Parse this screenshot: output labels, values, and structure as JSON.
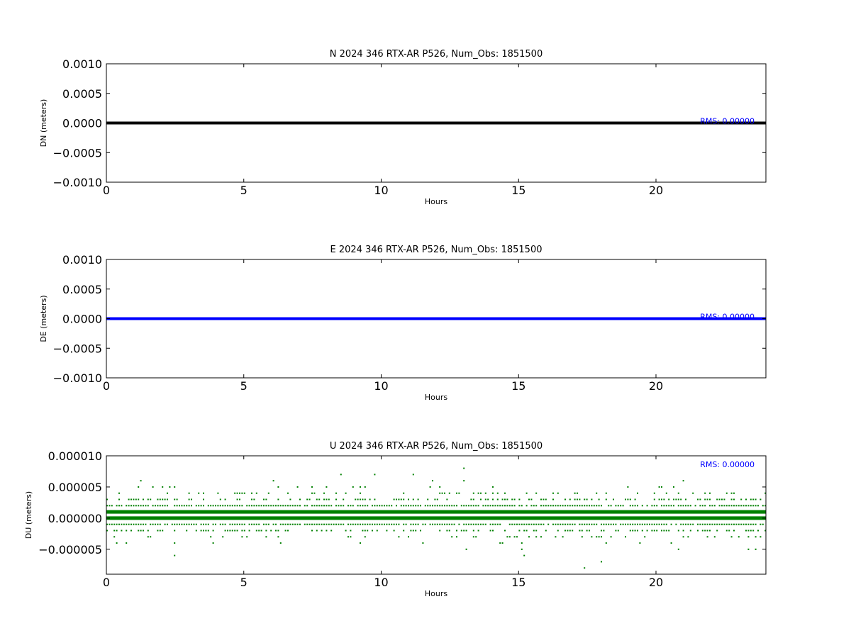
{
  "figure": {
    "background": "#ffffff"
  },
  "chart_data": [
    {
      "type": "scatter",
      "title": "N 2024 346 RTX-AR  P526, Num_Obs: 1851500",
      "xlabel": "Hours",
      "ylabel": "DN (meters)",
      "xlim": [
        0,
        24
      ],
      "ylim": [
        -0.001,
        0.001
      ],
      "xticks": [
        0,
        5,
        10,
        15,
        20
      ],
      "xtick_labels": [
        "0",
        "5",
        "10",
        "15",
        "20"
      ],
      "yticks": [
        0.001,
        0.0005,
        0.0,
        -0.0005,
        -0.001
      ],
      "ytick_labels": [
        "0.0010",
        "0.0005",
        "0.0000",
        "−0.0005",
        "−0.0010"
      ],
      "color": "#000000",
      "rms_label": "RMS:  0.00000",
      "rms_color": "#0000ff",
      "rms_position": "top-right",
      "series": [
        {
          "x_range": [
            0,
            24
          ],
          "y": 0.0
        }
      ]
    },
    {
      "type": "scatter",
      "title": "E 2024 346 RTX-AR  P526, Num_Obs: 1851500",
      "xlabel": "Hours",
      "ylabel": "DE (meters)",
      "xlim": [
        0,
        24
      ],
      "ylim": [
        -0.001,
        0.001
      ],
      "xticks": [
        0,
        5,
        10,
        15,
        20
      ],
      "xtick_labels": [
        "0",
        "5",
        "10",
        "15",
        "20"
      ],
      "yticks": [
        0.001,
        0.0005,
        0.0,
        -0.0005,
        -0.001
      ],
      "ytick_labels": [
        "0.0010",
        "0.0005",
        "0.0000",
        "−0.0005",
        "−0.0010"
      ],
      "color": "#0000ff",
      "rms_label": "RMS:  0.00000",
      "rms_color": "#0000ff",
      "rms_position": "top-right",
      "series": [
        {
          "x_range": [
            0,
            24
          ],
          "y": 0.0
        }
      ]
    },
    {
      "type": "scatter",
      "title": "U 2024 346 RTX-AR  P526, Num_Obs: 1851500",
      "xlabel": "Hours",
      "ylabel": "DU (meters)",
      "xlim": [
        0,
        24
      ],
      "ylim": [
        -9e-06,
        1e-05
      ],
      "xticks": [
        0,
        5,
        10,
        15,
        20
      ],
      "xtick_labels": [
        "0",
        "5",
        "10",
        "15",
        "20"
      ],
      "yticks": [
        1e-05,
        5e-06,
        0.0,
        -5e-06
      ],
      "ytick_labels": [
        "0.000010",
        "0.000005",
        "0.000000",
        "−0.000005"
      ],
      "color": "#008000",
      "rms_label": "RMS:  0.00000",
      "rms_color": "#0000ff",
      "rms_position": "top-right",
      "levels": [
        {
          "y": 1e-06,
          "density": 1.0
        },
        {
          "y": 0.0,
          "density": 1.0
        },
        {
          "y": 2e-06,
          "density": 0.85
        },
        {
          "y": -1e-06,
          "density": 0.85
        },
        {
          "y": 3e-06,
          "density": 0.45
        },
        {
          "y": -2e-06,
          "density": 0.45
        },
        {
          "y": 4e-06,
          "density": 0.16
        },
        {
          "y": -3e-06,
          "density": 0.16
        },
        {
          "y": 5e-06,
          "density": 0.05
        },
        {
          "y": -4e-06,
          "density": 0.05
        },
        {
          "y": 6e-06,
          "density": 0.018
        },
        {
          "y": -5e-06,
          "density": 0.018
        },
        {
          "y": 7e-06,
          "density": 0.006
        },
        {
          "y": -6e-06,
          "density": 0.006
        },
        {
          "y": 8e-06,
          "density": 0.003
        },
        {
          "y": -7e-06,
          "density": 0.002
        },
        {
          "y": 9e-06,
          "density": 0.001
        },
        {
          "y": -8e-06,
          "density": 0.001
        }
      ]
    }
  ]
}
